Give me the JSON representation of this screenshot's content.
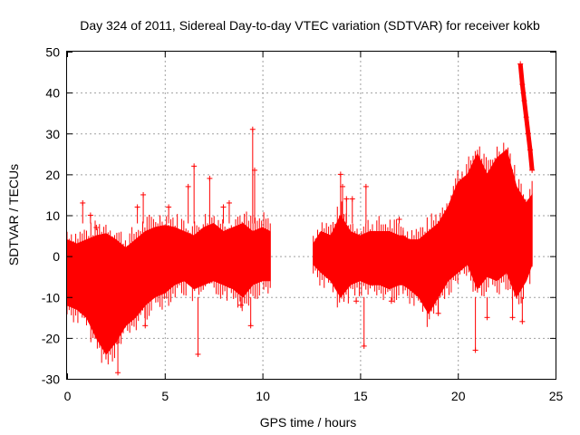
{
  "chart_data": {
    "type": "scatter",
    "title": "Day 324 of 2011, Sidereal Day-to-day VTEC variation (SDTVAR) for receiver kokb",
    "xlabel": "GPS time / hours",
    "ylabel": "SDTVAR / TECUs",
    "xlim": [
      0,
      25
    ],
    "ylim": [
      -30,
      50
    ],
    "xticks": [
      0,
      5,
      10,
      15,
      20,
      25
    ],
    "xtick_labels": [
      "0",
      "5",
      "10",
      "15",
      "20",
      "25"
    ],
    "yticks": [
      -30,
      -20,
      -10,
      0,
      10,
      20,
      30,
      40,
      50
    ],
    "ytick_labels": [
      "-30",
      "-20",
      "-10",
      "0",
      "10",
      "20",
      "30",
      "40",
      "50"
    ],
    "grid": true,
    "marker": "+",
    "color": "#ff0000",
    "series": [
      {
        "name": "SDTVAR",
        "band_upper": [
          [
            0,
            4
          ],
          [
            0.5,
            3
          ],
          [
            1,
            4
          ],
          [
            1.5,
            5
          ],
          [
            2,
            5.5
          ],
          [
            2.5,
            4
          ],
          [
            3,
            2
          ],
          [
            3.5,
            4
          ],
          [
            4,
            6
          ],
          [
            4.5,
            7
          ],
          [
            5,
            7.5
          ],
          [
            5.5,
            7
          ],
          [
            6,
            6
          ],
          [
            6.5,
            5
          ],
          [
            7,
            7
          ],
          [
            7.5,
            8
          ],
          [
            8,
            6
          ],
          [
            8.5,
            7
          ],
          [
            9,
            8
          ],
          [
            9.5,
            6
          ],
          [
            10,
            7
          ],
          [
            10.4,
            6
          ]
        ],
        "band_lower": [
          [
            0,
            -12
          ],
          [
            0.5,
            -13
          ],
          [
            1,
            -15
          ],
          [
            1.5,
            -20
          ],
          [
            2,
            -24
          ],
          [
            2.5,
            -21
          ],
          [
            3,
            -17
          ],
          [
            3.5,
            -15
          ],
          [
            4,
            -12
          ],
          [
            4.5,
            -10
          ],
          [
            5,
            -9
          ],
          [
            5.5,
            -7
          ],
          [
            6,
            -6
          ],
          [
            6.5,
            -8
          ],
          [
            7,
            -7
          ],
          [
            7.5,
            -6
          ],
          [
            8,
            -7
          ],
          [
            8.5,
            -8
          ],
          [
            9,
            -10
          ],
          [
            9.5,
            -7
          ],
          [
            10,
            -6
          ],
          [
            10.4,
            -6
          ]
        ],
        "band2_upper": [
          [
            12.6,
            3
          ],
          [
            13,
            6
          ],
          [
            13.5,
            5
          ],
          [
            14,
            10
          ],
          [
            14.5,
            6
          ],
          [
            15,
            5
          ],
          [
            15.5,
            6
          ],
          [
            16,
            6
          ],
          [
            16.5,
            6
          ],
          [
            17,
            5
          ],
          [
            17.2,
            5
          ]
        ],
        "band2_lower": [
          [
            12.6,
            -2
          ],
          [
            13,
            -4
          ],
          [
            13.5,
            -6
          ],
          [
            14,
            -10
          ],
          [
            14.5,
            -7
          ],
          [
            15,
            -6
          ],
          [
            15.5,
            -7
          ],
          [
            16,
            -7
          ],
          [
            16.5,
            -8
          ],
          [
            17,
            -7
          ],
          [
            17.2,
            -7
          ]
        ],
        "band3_upper": [
          [
            17.2,
            5
          ],
          [
            17.5,
            4
          ],
          [
            18,
            4
          ],
          [
            18.5,
            6
          ],
          [
            19,
            8
          ],
          [
            19.5,
            12
          ],
          [
            20,
            18
          ],
          [
            20.5,
            20
          ],
          [
            21,
            25
          ],
          [
            21.5,
            20
          ],
          [
            22,
            24
          ],
          [
            22.5,
            26
          ],
          [
            23,
            17
          ],
          [
            23.5,
            13
          ],
          [
            23.8,
            15
          ]
        ],
        "band3_lower": [
          [
            17.2,
            -7
          ],
          [
            17.5,
            -8
          ],
          [
            18,
            -10
          ],
          [
            18.5,
            -14
          ],
          [
            19,
            -10
          ],
          [
            19.5,
            -6
          ],
          [
            20,
            -4
          ],
          [
            20.5,
            -2
          ],
          [
            21,
            -8
          ],
          [
            21.5,
            -5
          ],
          [
            22,
            -6
          ],
          [
            22.5,
            -4
          ],
          [
            23,
            -10
          ],
          [
            23.5,
            -6
          ],
          [
            23.8,
            -2
          ]
        ],
        "streak": [
          [
            23.2,
            47
          ],
          [
            23.3,
            42
          ],
          [
            23.4,
            38
          ],
          [
            23.5,
            34
          ],
          [
            23.6,
            30
          ],
          [
            23.7,
            26
          ],
          [
            23.8,
            21
          ]
        ],
        "outliers": [
          [
            0.8,
            13
          ],
          [
            1.2,
            10
          ],
          [
            1.5,
            7
          ],
          [
            2.6,
            -28.5
          ],
          [
            3.0,
            -14
          ],
          [
            3.6,
            12
          ],
          [
            3.9,
            15
          ],
          [
            4.0,
            -17
          ],
          [
            5.2,
            12
          ],
          [
            6.2,
            17
          ],
          [
            6.5,
            22
          ],
          [
            6.7,
            -24
          ],
          [
            7.3,
            19
          ],
          [
            8.0,
            12
          ],
          [
            8.3,
            13
          ],
          [
            8.9,
            -12
          ],
          [
            9.4,
            -17
          ],
          [
            9.5,
            31
          ],
          [
            9.6,
            21
          ],
          [
            14.0,
            20
          ],
          [
            14.1,
            17
          ],
          [
            14.3,
            14
          ],
          [
            14.6,
            14
          ],
          [
            14.8,
            -11
          ],
          [
            15.2,
            -22
          ],
          [
            15.3,
            17
          ],
          [
            16.6,
            -11
          ],
          [
            17.0,
            9
          ],
          [
            19.0,
            -14
          ],
          [
            19.6,
            10
          ],
          [
            20.5,
            16
          ],
          [
            20.9,
            -23
          ],
          [
            21.5,
            -15
          ],
          [
            22.8,
            -15
          ],
          [
            23.3,
            -16
          ]
        ]
      }
    ]
  }
}
